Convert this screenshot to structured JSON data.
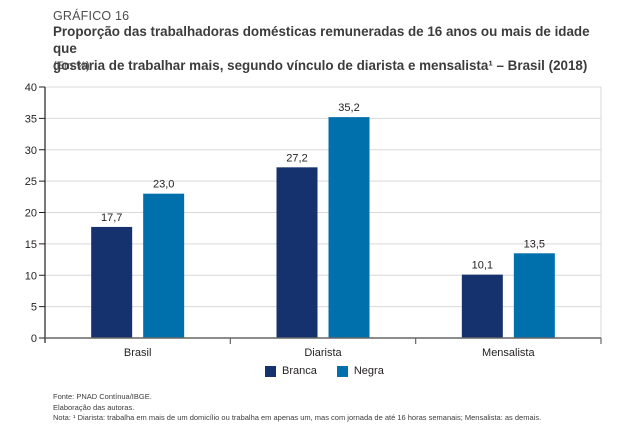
{
  "header": {
    "kicker": "GRÁFICO 16",
    "title_line1": "Proporção das trabalhadoras domésticas remuneradas de 16 anos ou mais de idade que",
    "title_line2": "gostaria de trabalhar mais, segundo vínculo de diarista e mensalista¹ – Brasil (2018)",
    "unit": "(Em %)"
  },
  "chart_data": {
    "type": "bar",
    "title": "Proporção das trabalhadoras domésticas remuneradas de 16 anos ou mais de idade que gostaria de trabalhar mais, segundo vínculo de diarista e mensalista¹ – Brasil (2018)",
    "subtitle": "(Em %)",
    "xlabel": "",
    "ylabel": "",
    "categories": [
      "Brasil",
      "Diarista",
      "Mensalista"
    ],
    "series": [
      {
        "name": "Branca",
        "color": "#15326f",
        "values": [
          17.7,
          27.2,
          10.1
        ],
        "labels": [
          "17,7",
          "27,2",
          "10,1"
        ]
      },
      {
        "name": "Negra",
        "color": "#0070ad",
        "values": [
          23.0,
          35.2,
          13.5
        ],
        "labels": [
          "23,0",
          "35,2",
          "13,5"
        ]
      }
    ],
    "ylim": [
      0,
      40
    ],
    "yticks": [
      0,
      5,
      10,
      15,
      20,
      25,
      30,
      35,
      40
    ],
    "grid": true,
    "legend_position": "bottom-center"
  },
  "footer": {
    "source": "Fonte: PNAD Contínua/IBGE.",
    "authorship": "Elaboração das autoras.",
    "note": "Nota: ¹ Diarista: trabalha em mais de um domicílio ou trabalha em apenas um, mas com jornada de até 16 horas semanais; Mensalista: as demais."
  }
}
